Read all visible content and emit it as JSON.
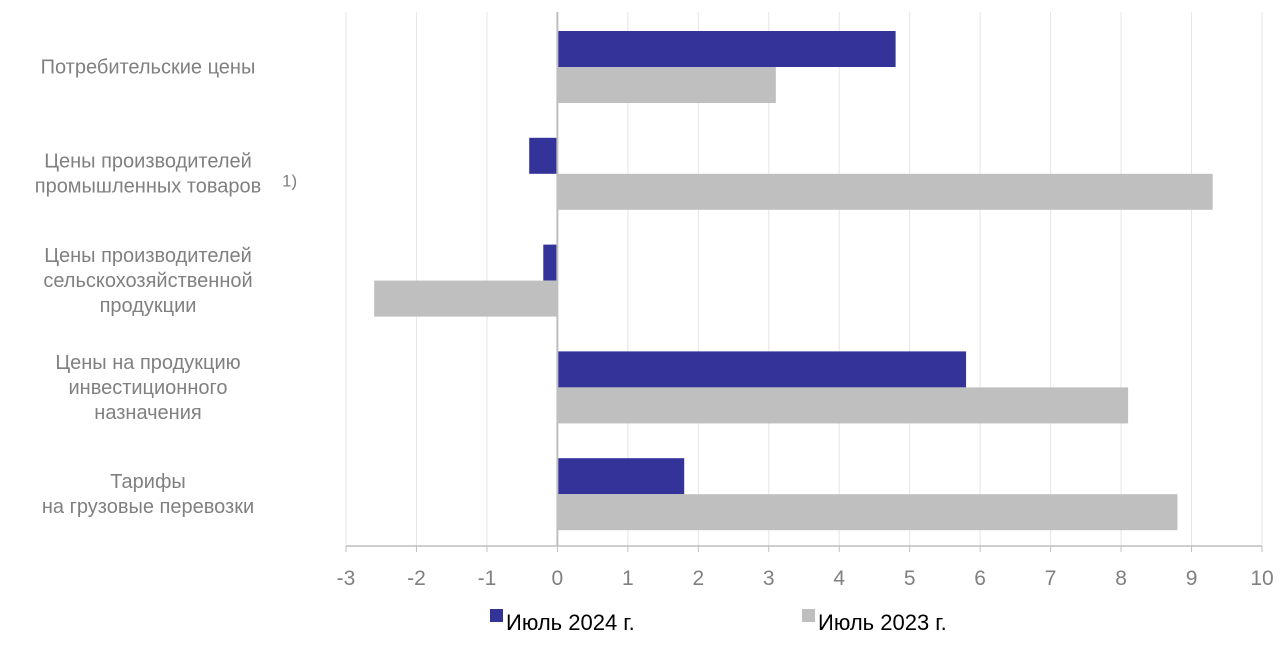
{
  "chart_data": {
    "type": "bar",
    "orientation": "horizontal",
    "categories": [
      [
        "Потребительские цены"
      ],
      [
        "Цены производителей",
        "промышленных товаров"
      ],
      [
        "Цены производителей",
        "сельскохозяйственной",
        "продукции"
      ],
      [
        "Цены на продукцию",
        "инвестиционного",
        "назначения"
      ],
      [
        "Тарифы",
        "на грузовые перевозки"
      ]
    ],
    "category_footnotes": [
      "",
      "1)",
      "",
      "",
      ""
    ],
    "series": [
      {
        "name": "Июль 2024 г.",
        "color": "#333399",
        "values": [
          4.8,
          -0.4,
          -0.2,
          5.8,
          1.8
        ]
      },
      {
        "name": "Июль 2023 г.",
        "color": "#BFBFBF",
        "values": [
          3.1,
          9.3,
          -2.6,
          8.1,
          8.8
        ]
      }
    ],
    "xlim": [
      -3,
      10
    ],
    "x_ticks": [
      "-3",
      "-2",
      "-1",
      "0",
      "1",
      "2",
      "3",
      "4",
      "5",
      "6",
      "7",
      "8",
      "9",
      "10"
    ],
    "grid": true,
    "legend_position": "bottom",
    "title": "",
    "xlabel": "",
    "ylabel": ""
  }
}
